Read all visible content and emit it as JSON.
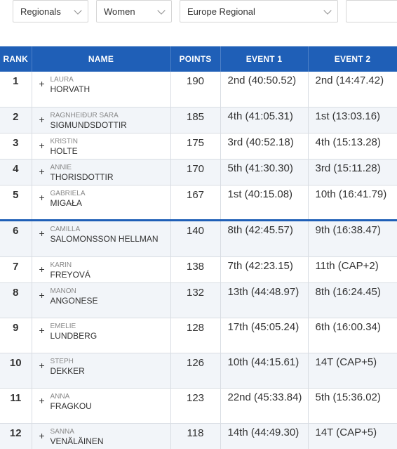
{
  "filters": {
    "region": "Regionals",
    "division": "Women",
    "competition": "Europe Regional",
    "extra": ""
  },
  "table": {
    "headers": {
      "rank": "RANK",
      "name": "NAME",
      "points": "POINTS",
      "event1": "EVENT 1",
      "event2": "EVENT 2"
    },
    "expand_symbol": "+",
    "rows": [
      {
        "rank": "1",
        "first": "LAURA",
        "last": "HORVATH",
        "points": "190",
        "event1": "2nd (40:50.52)",
        "event2": "2nd (14:47.42)"
      },
      {
        "rank": "2",
        "first": "RAGNHEIÐUR SARA",
        "last": "SIGMUNDSDOTTIR",
        "points": "185",
        "event1": "4th (41:05.31)",
        "event2": "1st (13:03.16)"
      },
      {
        "rank": "3",
        "first": "KRISTIN",
        "last": "HOLTE",
        "points": "175",
        "event1": "3rd (40:52.18)",
        "event2": "4th (15:13.28)"
      },
      {
        "rank": "4",
        "first": "ANNIE",
        "last": "THORISDOTTIR",
        "points": "170",
        "event1": "5th (41:30.30)",
        "event2": "3rd (15:11.28)"
      },
      {
        "rank": "5",
        "first": "GABRIELA",
        "last": "MIGAŁA",
        "points": "167",
        "event1": "1st (40:15.08)",
        "event2": "10th (16:41.79)"
      },
      {
        "rank": "6",
        "first": "CAMILLA",
        "last": "SALOMONSSON HELLMAN",
        "points": "140",
        "event1": "8th (42:45.57)",
        "event2": "9th (16:38.47)"
      },
      {
        "rank": "7",
        "first": "KARIN",
        "last": "FREYOVÁ",
        "points": "138",
        "event1": "7th (42:23.15)",
        "event2": "11th (CAP+2)"
      },
      {
        "rank": "8",
        "first": "MANON",
        "last": "ANGONESE",
        "points": "132",
        "event1": "13th (44:48.97)",
        "event2": "8th (16:24.45)"
      },
      {
        "rank": "9",
        "first": "EMELIE",
        "last": "LUNDBERG",
        "points": "128",
        "event1": "17th (45:05.24)",
        "event2": "6th (16:00.34)"
      },
      {
        "rank": "10",
        "first": "STEPH",
        "last": "DEKKER",
        "points": "126",
        "event1": "10th (44:15.61)",
        "event2": "14T (CAP+5)"
      },
      {
        "rank": "11",
        "first": "ANNA",
        "last": "FRAGKOU",
        "points": "123",
        "event1": "22nd (45:33.84)",
        "event2": "5th (15:36.02)"
      },
      {
        "rank": "12",
        "first": "SANNA",
        "last": "VENÄLÄINEN",
        "points": "118",
        "event1": "14th (44:49.30)",
        "event2": "14T (CAP+5)"
      }
    ]
  }
}
